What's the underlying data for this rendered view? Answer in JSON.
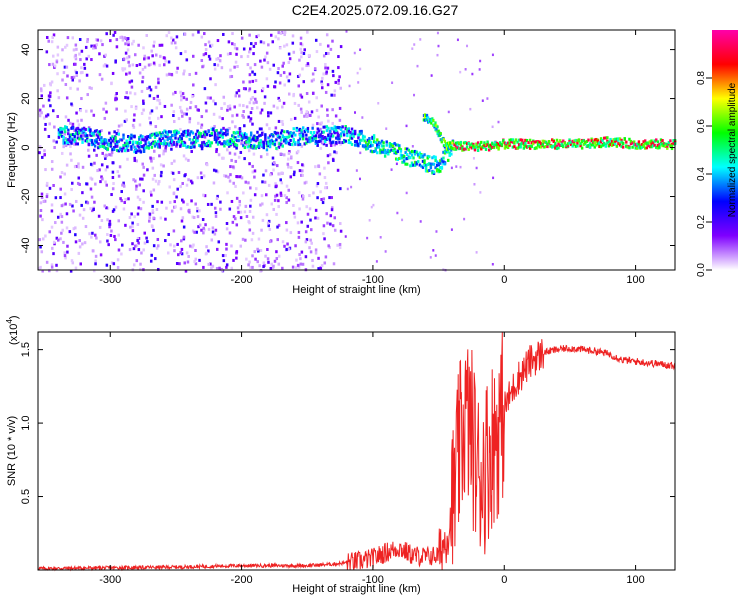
{
  "title": "C2E4.2025.072.09.16.G27",
  "chart_data": [
    {
      "type": "heatmap",
      "xlabel": "Height of straight line (km)",
      "ylabel": "Frequency (Hz)",
      "xlim": [
        -355,
        130
      ],
      "ylim": [
        -50,
        48
      ],
      "x_ticks": [
        -300,
        -200,
        -100,
        0,
        100
      ],
      "y_ticks": [
        -40,
        -20,
        0,
        20,
        40
      ],
      "colorbar": {
        "label": "Normalized spectral amplitude",
        "range": [
          0.0,
          1.0
        ],
        "ticks": [
          0.0,
          0.2,
          0.4,
          0.6,
          0.8
        ],
        "tick_labels": [
          "0.0",
          "0.2",
          "0.4",
          "0.6",
          "0.8"
        ],
        "colors": [
          "#ffffff",
          "#7f00ff",
          "#0000ff",
          "#00ffff",
          "#00ff00",
          "#ffff00",
          "#ff0000",
          "#ff00aa"
        ]
      },
      "ridge": {
        "x": [
          -340,
          -320,
          -300,
          -280,
          -260,
          -240,
          -220,
          -200,
          -180,
          -160,
          -140,
          -120,
          -100,
          -80,
          -60,
          -50,
          -45,
          -40,
          -30,
          -20,
          0,
          20,
          40,
          60,
          80,
          100,
          130
        ],
        "y": [
          5,
          4,
          2,
          1,
          3,
          3,
          4,
          3,
          2,
          4,
          5,
          5,
          1,
          -3,
          -7,
          -8,
          -3,
          0,
          0,
          0,
          1,
          1,
          1,
          1,
          2,
          1,
          1
        ]
      },
      "branch": {
        "x": [
          -62,
          -55,
          -50,
          -45,
          -40
        ],
        "y": [
          12,
          10,
          5,
          0,
          0
        ]
      },
      "noise_region_x": [
        -355,
        -125
      ],
      "grid": false
    },
    {
      "type": "line",
      "xlabel": "Height of straight line (km)",
      "ylabel": "SNR (10 * v/v)",
      "scale_label": "(x10",
      "scale_exp": "4",
      "scale_close": ")",
      "xlim": [
        -355,
        130
      ],
      "ylim": [
        0,
        1.62
      ],
      "x_ticks": [
        -300,
        -200,
        -100,
        0,
        100
      ],
      "y_ticks": [
        0.5,
        1.0,
        1.5
      ],
      "y_tick_labels": [
        "0.5",
        "1.0",
        "1.5"
      ],
      "color": "#ee2222",
      "series": [
        {
          "x": [
            -355,
            -300,
            -250,
            -200,
            -150,
            -130,
            -110,
            -100,
            -90,
            -80,
            -70,
            -60,
            -50,
            -45,
            -40,
            -35,
            -30,
            -25,
            -20,
            -15,
            -10,
            -5,
            0,
            10,
            20,
            30,
            40,
            50,
            60,
            70,
            80,
            90,
            100,
            110,
            120,
            130
          ],
          "y": [
            0.01,
            0.015,
            0.02,
            0.03,
            0.03,
            0.04,
            0.06,
            0.08,
            0.12,
            0.15,
            0.1,
            0.09,
            0.1,
            0.2,
            0.35,
            0.75,
            1.05,
            0.95,
            0.65,
            0.7,
            0.85,
            0.95,
            1.1,
            1.3,
            1.42,
            1.48,
            1.5,
            1.51,
            1.5,
            1.49,
            1.47,
            1.43,
            1.42,
            1.41,
            1.4,
            1.39
          ]
        }
      ],
      "grid": false
    }
  ]
}
